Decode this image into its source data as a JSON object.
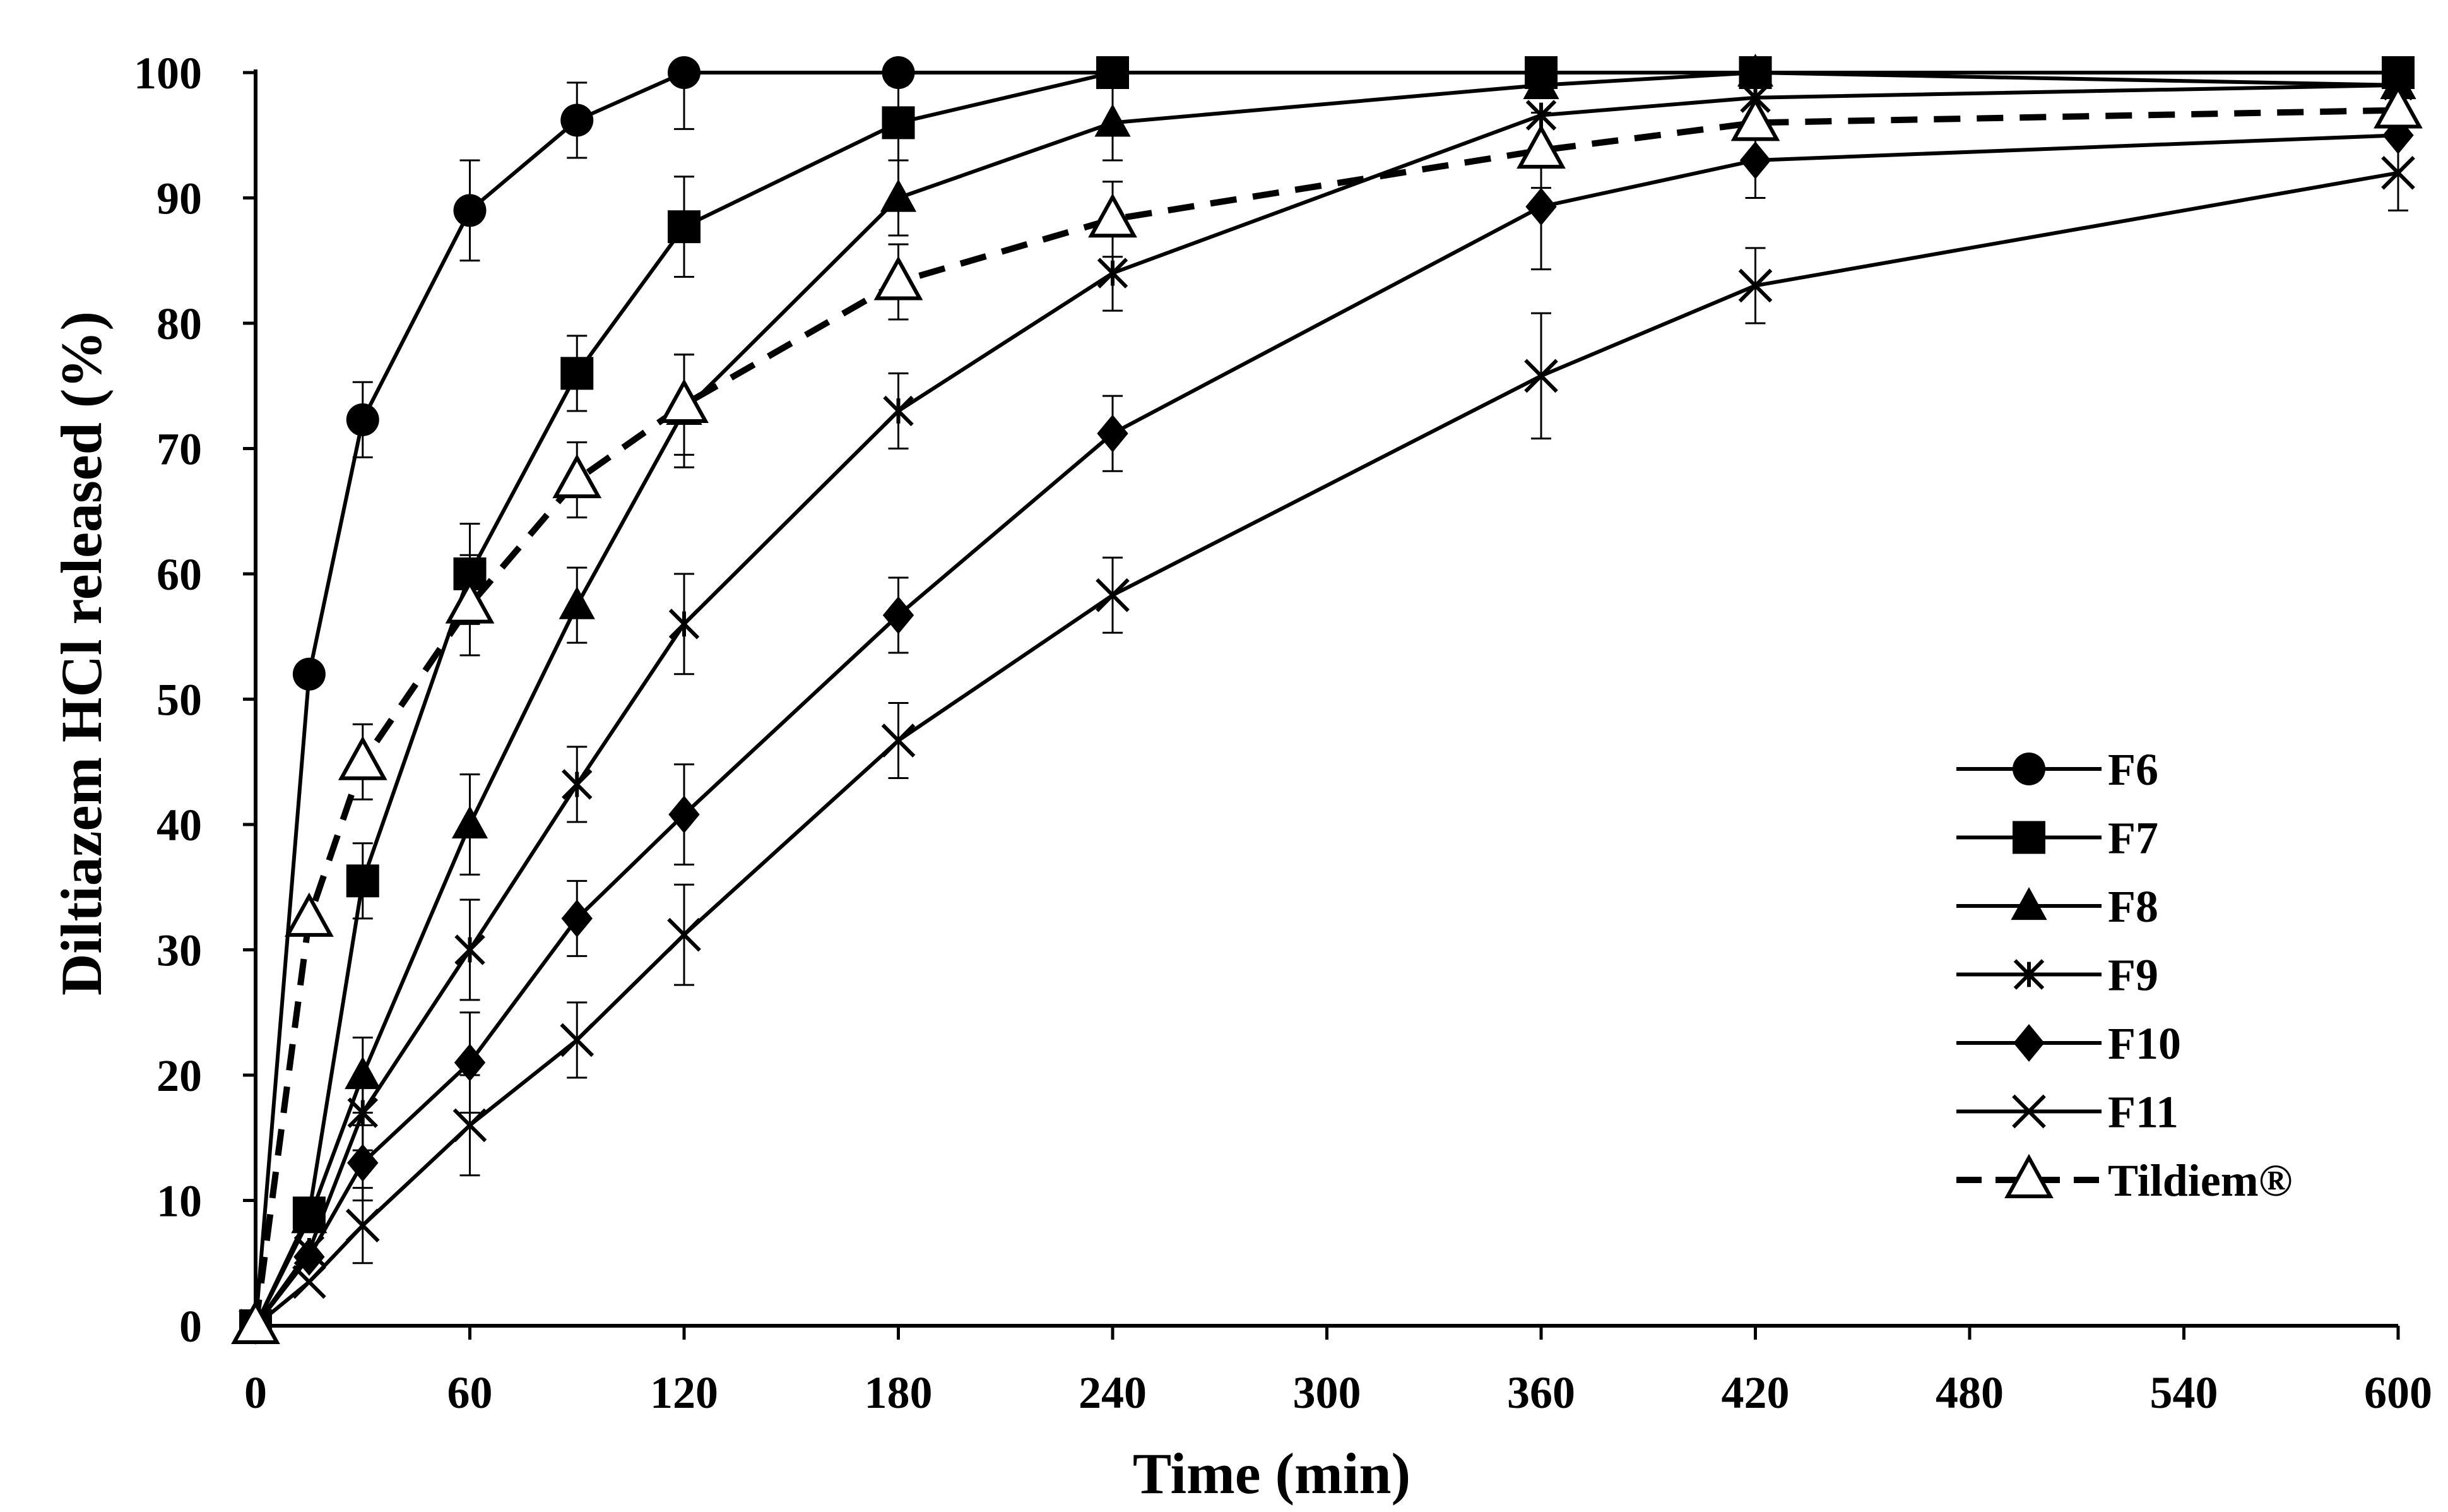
{
  "chart_data": {
    "type": "line",
    "title": "",
    "xlabel": "Time (min)",
    "ylabel": "Diltiazem HCl released (%)",
    "xlim": [
      0,
      600
    ],
    "ylim": [
      0,
      100
    ],
    "xticks": [
      0,
      60,
      120,
      180,
      240,
      300,
      360,
      420,
      480,
      540,
      600
    ],
    "yticks": [
      0,
      10,
      20,
      30,
      40,
      50,
      60,
      70,
      80,
      90,
      100
    ],
    "grid": false,
    "legend_position": "bottom-right",
    "series": [
      {
        "name": "F6",
        "marker": "circle",
        "dashed": false,
        "x": [
          0,
          15,
          30,
          60,
          90,
          120,
          180,
          240,
          360,
          420,
          600
        ],
        "y": [
          0,
          52,
          72.3,
          89,
          96.2,
          100,
          100,
          100,
          100,
          100,
          100
        ],
        "err": [
          0,
          0,
          3,
          4,
          3,
          4.5,
          0,
          0,
          0,
          0,
          0
        ]
      },
      {
        "name": "F7",
        "marker": "square",
        "dashed": false,
        "x": [
          0,
          15,
          30,
          60,
          90,
          120,
          180,
          240,
          360,
          420,
          600
        ],
        "y": [
          0,
          9,
          35.5,
          60,
          76,
          87.7,
          96,
          100,
          100,
          100,
          100
        ],
        "err": [
          0,
          0,
          3,
          4,
          3,
          4,
          3,
          0,
          0,
          0,
          0
        ]
      },
      {
        "name": "F8",
        "marker": "triangle",
        "dashed": false,
        "x": [
          0,
          15,
          30,
          60,
          90,
          120,
          180,
          240,
          360,
          420,
          600
        ],
        "y": [
          0,
          8.5,
          20,
          40,
          57.5,
          73,
          90,
          96,
          99,
          100,
          99
        ],
        "err": [
          0,
          0,
          3,
          4,
          3,
          4.5,
          3,
          3,
          0,
          0,
          0
        ]
      },
      {
        "name": "F9",
        "marker": "asterisk",
        "dashed": false,
        "x": [
          0,
          15,
          30,
          60,
          90,
          120,
          180,
          240,
          360,
          420,
          600
        ],
        "y": [
          0,
          6,
          17,
          30,
          43.2,
          56,
          73,
          84,
          96.6,
          98,
          99
        ],
        "err": [
          0,
          0,
          3,
          4,
          3,
          4,
          3,
          3,
          0,
          0,
          0
        ]
      },
      {
        "name": "F10",
        "marker": "diamond",
        "dashed": false,
        "x": [
          0,
          15,
          30,
          60,
          90,
          120,
          180,
          240,
          360,
          420,
          600
        ],
        "y": [
          0,
          5.5,
          13,
          21,
          32.5,
          40.8,
          56.7,
          71.2,
          89.3,
          93,
          95
        ],
        "err": [
          0,
          0,
          3,
          4,
          3,
          4,
          3,
          3,
          5,
          3,
          0
        ]
      },
      {
        "name": "F11",
        "marker": "x",
        "dashed": false,
        "x": [
          0,
          15,
          30,
          60,
          90,
          120,
          180,
          240,
          360,
          420,
          600
        ],
        "y": [
          0,
          3.5,
          8,
          16,
          22.8,
          31.2,
          46.7,
          58.3,
          75.8,
          83,
          92
        ],
        "err": [
          0,
          0,
          3,
          4,
          3,
          4,
          3,
          3,
          5,
          3,
          3
        ]
      },
      {
        "name": "Tildiem®",
        "marker": "open-triangle",
        "dashed": true,
        "x": [
          0,
          15,
          30,
          60,
          90,
          120,
          180,
          240,
          360,
          420,
          600
        ],
        "y": [
          0,
          32.5,
          45,
          57.5,
          67.5,
          73.5,
          83.3,
          88.3,
          93.8,
          96,
          97
        ],
        "err": [
          0,
          0,
          3,
          4,
          3,
          4,
          3,
          3,
          3,
          3,
          0
        ]
      }
    ]
  }
}
